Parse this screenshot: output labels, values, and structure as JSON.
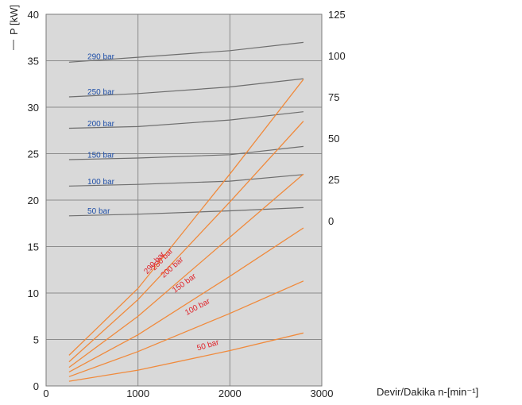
{
  "chart_data": {
    "type": "line",
    "ylabel": "P [kW]",
    "xlabel": "Devir/Dakika n-[min⁻¹]",
    "xlim": [
      0,
      3000
    ],
    "ylim": [
      0,
      40
    ],
    "y2lim": [
      -100,
      125
    ],
    "grid": true,
    "x_ticks": [
      "0",
      "1000",
      "2000",
      "3000"
    ],
    "y_ticks": [
      "0",
      "5",
      "10",
      "15",
      "20",
      "25",
      "30",
      "35",
      "40"
    ],
    "y2_ticks": [
      "0",
      "25",
      "50",
      "75",
      "100",
      "125"
    ],
    "colors": {
      "plot_bg": "#d9d9d9",
      "grid": "#8c8c8c",
      "gray_curve": "#6e6e6e",
      "orange_curve": "#f08a3c",
      "blue_label": "#1f4fa8",
      "red_label": "#e0232a"
    },
    "series_right_axis": [
      {
        "name": "290 bar",
        "x": [
          250,
          1000,
          2000,
          2800
        ],
        "values": [
          96,
          99,
          103,
          108
        ]
      },
      {
        "name": "250 bar",
        "x": [
          250,
          1000,
          2000,
          2800
        ],
        "values": [
          75,
          77,
          81,
          86
        ]
      },
      {
        "name": "200 bar",
        "x": [
          250,
          1000,
          2000,
          2800
        ],
        "values": [
          56,
          57,
          61,
          66
        ]
      },
      {
        "name": "150 bar",
        "x": [
          250,
          1000,
          2000,
          2800
        ],
        "values": [
          37,
          38,
          40,
          45
        ]
      },
      {
        "name": "100 bar",
        "x": [
          250,
          1000,
          2000,
          2800
        ],
        "values": [
          21,
          22,
          24,
          28
        ]
      },
      {
        "name": "50 bar",
        "x": [
          250,
          1000,
          2000,
          2800
        ],
        "values": [
          3,
          4,
          6,
          8
        ]
      }
    ],
    "series_left_axis": [
      {
        "name": "290 bar",
        "x": [
          250,
          1000,
          2000,
          2800
        ],
        "values": [
          3.3,
          10.5,
          22.8,
          33.0
        ]
      },
      {
        "name": "250 bar",
        "x": [
          250,
          1000,
          2000,
          2800
        ],
        "values": [
          2.6,
          9.3,
          19.8,
          28.5
        ]
      },
      {
        "name": "200 bar",
        "x": [
          250,
          1000,
          2000,
          2800
        ],
        "values": [
          2.0,
          7.5,
          16.0,
          22.8
        ]
      },
      {
        "name": "150 bar",
        "x": [
          250,
          1000,
          2000,
          2800
        ],
        "values": [
          1.5,
          5.5,
          11.8,
          17.0
        ]
      },
      {
        "name": "100 bar",
        "x": [
          250,
          1000,
          2000,
          2800
        ],
        "values": [
          1.0,
          3.7,
          7.8,
          11.3
        ]
      },
      {
        "name": "50 bar",
        "x": [
          250,
          1000,
          2000,
          2800
        ],
        "values": [
          0.5,
          1.7,
          3.8,
          5.7
        ]
      }
    ],
    "annotations": [
      "290 bar",
      "250 bar",
      "200 bar",
      "150 bar",
      "100 bar",
      "50 bar"
    ]
  }
}
